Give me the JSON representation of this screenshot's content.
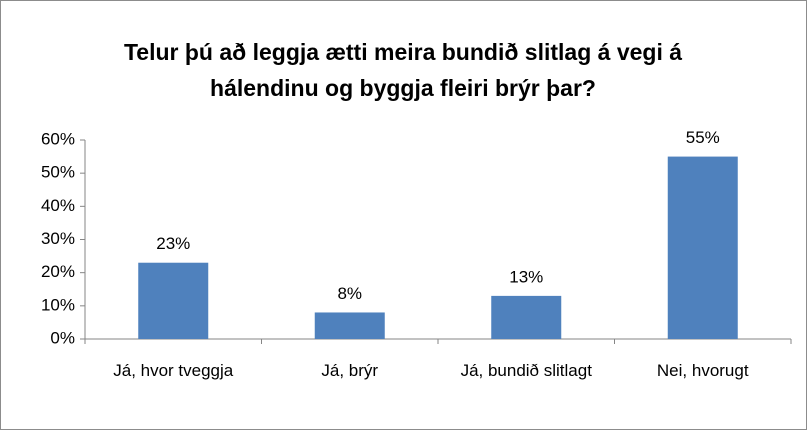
{
  "chart_data": {
    "type": "bar",
    "title": "Telur þú að leggja ætti meira bundið slitlag  á vegi á hálendinu og byggja fleiri brýr þar?",
    "categories": [
      "Já, hvor tveggja",
      "Já, brýr",
      "Já, bundið slitlagt",
      "Nei, hvorugt"
    ],
    "values": [
      23,
      8,
      13,
      55
    ],
    "value_labels": [
      "23%",
      "8%",
      "13%",
      "55%"
    ],
    "color": "#4f81bd",
    "ylim": [
      0,
      60
    ],
    "yticks": [
      {
        "value": 0,
        "label": "0%"
      },
      {
        "value": 10,
        "label": "10%"
      },
      {
        "value": 20,
        "label": "20%"
      },
      {
        "value": 30,
        "label": "30%"
      },
      {
        "value": 40,
        "label": "40%"
      },
      {
        "value": 50,
        "label": "50%"
      },
      {
        "value": 60,
        "label": "60%"
      }
    ],
    "grid": false
  }
}
